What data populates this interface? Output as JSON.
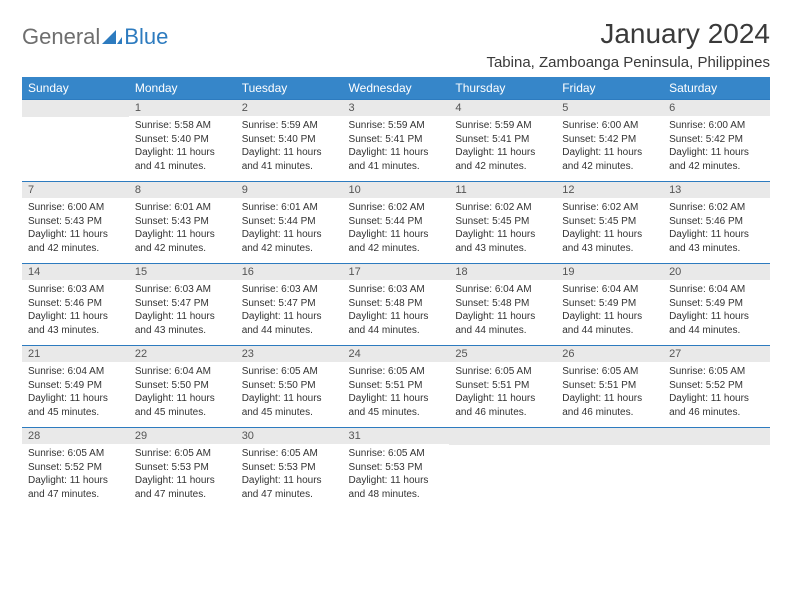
{
  "logo": {
    "general": "General",
    "blue": "Blue"
  },
  "title": "January 2024",
  "location": "Tabina, Zamboanga Peninsula, Philippines",
  "colors": {
    "header_bg": "#3686c9",
    "header_text": "#ffffff",
    "daynum_bg": "#e9e9e9",
    "daynum_text": "#555555",
    "border": "#2d7bbf",
    "logo_gray": "#6e6e6e",
    "logo_blue": "#2d7bbf",
    "body_text": "#333333",
    "page_bg": "#ffffff"
  },
  "typography": {
    "month_title_pt": 28,
    "location_pt": 15,
    "weekday_pt": 12,
    "daynum_pt": 11,
    "cell_pt": 10
  },
  "weekdays": [
    "Sunday",
    "Monday",
    "Tuesday",
    "Wednesday",
    "Thursday",
    "Friday",
    "Saturday"
  ],
  "weeks": [
    [
      null,
      {
        "n": "1",
        "sr": "5:58 AM",
        "ss": "5:40 PM",
        "dl": "11 hours and 41 minutes."
      },
      {
        "n": "2",
        "sr": "5:59 AM",
        "ss": "5:40 PM",
        "dl": "11 hours and 41 minutes."
      },
      {
        "n": "3",
        "sr": "5:59 AM",
        "ss": "5:41 PM",
        "dl": "11 hours and 41 minutes."
      },
      {
        "n": "4",
        "sr": "5:59 AM",
        "ss": "5:41 PM",
        "dl": "11 hours and 42 minutes."
      },
      {
        "n": "5",
        "sr": "6:00 AM",
        "ss": "5:42 PM",
        "dl": "11 hours and 42 minutes."
      },
      {
        "n": "6",
        "sr": "6:00 AM",
        "ss": "5:42 PM",
        "dl": "11 hours and 42 minutes."
      }
    ],
    [
      {
        "n": "7",
        "sr": "6:00 AM",
        "ss": "5:43 PM",
        "dl": "11 hours and 42 minutes."
      },
      {
        "n": "8",
        "sr": "6:01 AM",
        "ss": "5:43 PM",
        "dl": "11 hours and 42 minutes."
      },
      {
        "n": "9",
        "sr": "6:01 AM",
        "ss": "5:44 PM",
        "dl": "11 hours and 42 minutes."
      },
      {
        "n": "10",
        "sr": "6:02 AM",
        "ss": "5:44 PM",
        "dl": "11 hours and 42 minutes."
      },
      {
        "n": "11",
        "sr": "6:02 AM",
        "ss": "5:45 PM",
        "dl": "11 hours and 43 minutes."
      },
      {
        "n": "12",
        "sr": "6:02 AM",
        "ss": "5:45 PM",
        "dl": "11 hours and 43 minutes."
      },
      {
        "n": "13",
        "sr": "6:02 AM",
        "ss": "5:46 PM",
        "dl": "11 hours and 43 minutes."
      }
    ],
    [
      {
        "n": "14",
        "sr": "6:03 AM",
        "ss": "5:46 PM",
        "dl": "11 hours and 43 minutes."
      },
      {
        "n": "15",
        "sr": "6:03 AM",
        "ss": "5:47 PM",
        "dl": "11 hours and 43 minutes."
      },
      {
        "n": "16",
        "sr": "6:03 AM",
        "ss": "5:47 PM",
        "dl": "11 hours and 44 minutes."
      },
      {
        "n": "17",
        "sr": "6:03 AM",
        "ss": "5:48 PM",
        "dl": "11 hours and 44 minutes."
      },
      {
        "n": "18",
        "sr": "6:04 AM",
        "ss": "5:48 PM",
        "dl": "11 hours and 44 minutes."
      },
      {
        "n": "19",
        "sr": "6:04 AM",
        "ss": "5:49 PM",
        "dl": "11 hours and 44 minutes."
      },
      {
        "n": "20",
        "sr": "6:04 AM",
        "ss": "5:49 PM",
        "dl": "11 hours and 44 minutes."
      }
    ],
    [
      {
        "n": "21",
        "sr": "6:04 AM",
        "ss": "5:49 PM",
        "dl": "11 hours and 45 minutes."
      },
      {
        "n": "22",
        "sr": "6:04 AM",
        "ss": "5:50 PM",
        "dl": "11 hours and 45 minutes."
      },
      {
        "n": "23",
        "sr": "6:05 AM",
        "ss": "5:50 PM",
        "dl": "11 hours and 45 minutes."
      },
      {
        "n": "24",
        "sr": "6:05 AM",
        "ss": "5:51 PM",
        "dl": "11 hours and 45 minutes."
      },
      {
        "n": "25",
        "sr": "6:05 AM",
        "ss": "5:51 PM",
        "dl": "11 hours and 46 minutes."
      },
      {
        "n": "26",
        "sr": "6:05 AM",
        "ss": "5:51 PM",
        "dl": "11 hours and 46 minutes."
      },
      {
        "n": "27",
        "sr": "6:05 AM",
        "ss": "5:52 PM",
        "dl": "11 hours and 46 minutes."
      }
    ],
    [
      {
        "n": "28",
        "sr": "6:05 AM",
        "ss": "5:52 PM",
        "dl": "11 hours and 47 minutes."
      },
      {
        "n": "29",
        "sr": "6:05 AM",
        "ss": "5:53 PM",
        "dl": "11 hours and 47 minutes."
      },
      {
        "n": "30",
        "sr": "6:05 AM",
        "ss": "5:53 PM",
        "dl": "11 hours and 47 minutes."
      },
      {
        "n": "31",
        "sr": "6:05 AM",
        "ss": "5:53 PM",
        "dl": "11 hours and 48 minutes."
      },
      null,
      null,
      null
    ]
  ],
  "labels": {
    "sunrise": "Sunrise:",
    "sunset": "Sunset:",
    "daylight": "Daylight:"
  }
}
